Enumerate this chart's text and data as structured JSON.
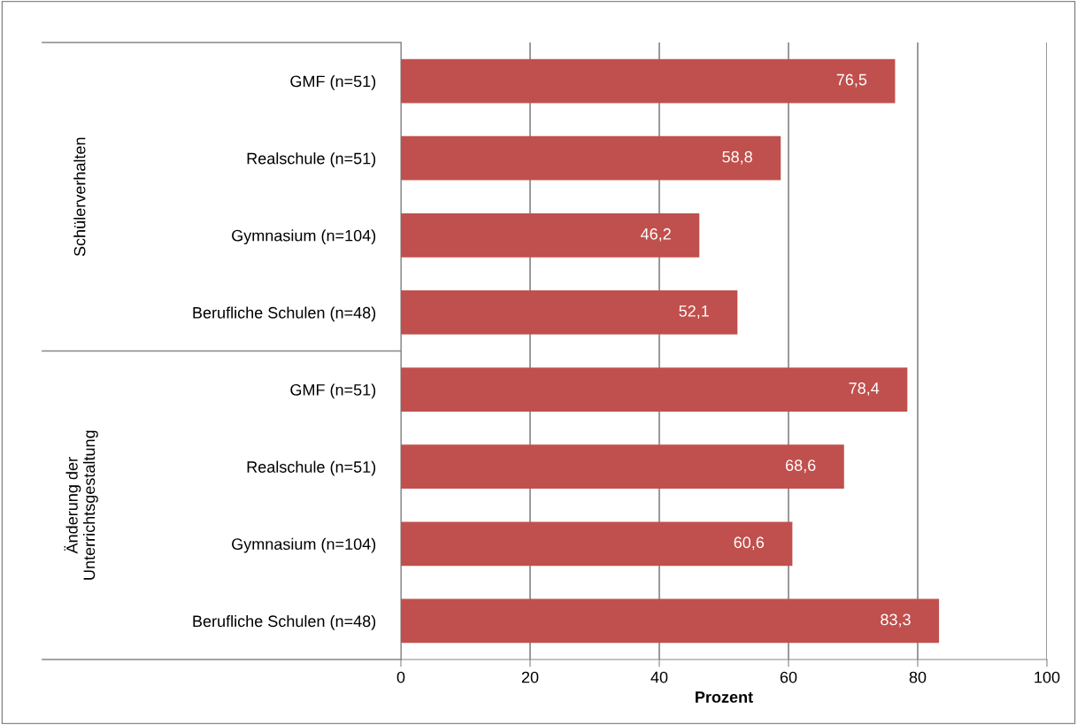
{
  "chart_data": {
    "type": "bar",
    "orientation": "horizontal",
    "categories": [
      "GMF (n=51)",
      "Realschule (n=51)",
      "Gymnasium (n=104)",
      "Berufliche Schulen (n=48)",
      "GMF (n=51)",
      "Realschule (n=51)",
      "Gymnasium (n=104)",
      "Berufliche Schulen (n=48)"
    ],
    "values": [
      76.5,
      58.8,
      46.2,
      52.1,
      78.4,
      68.6,
      60.6,
      83.3
    ],
    "value_labels": [
      "76,5",
      "58,8",
      "46,2",
      "52,1",
      "78,4",
      "68,6",
      "60,6",
      "83,3"
    ],
    "color": "#c0504d",
    "xlabel": "Prozent",
    "xlim": [
      0,
      100
    ],
    "xticks": [
      0,
      20,
      40,
      60,
      80,
      100
    ],
    "grid": "x",
    "legend": false,
    "annotations": [
      "Schülerverhalten",
      "Änderung der\nUnterrichtsgestaltung"
    ]
  }
}
